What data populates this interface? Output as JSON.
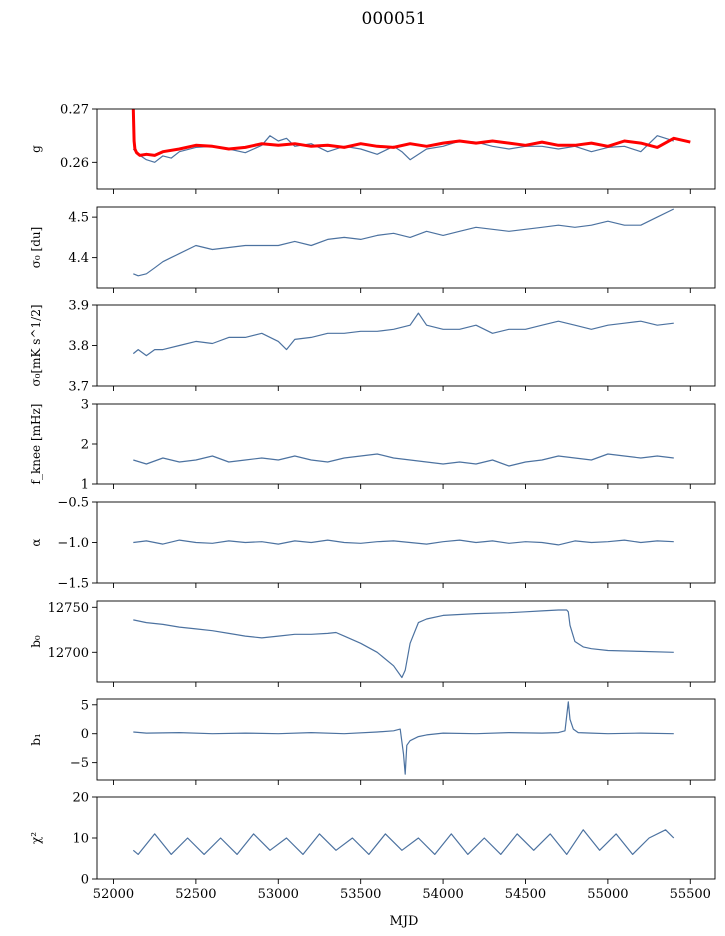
{
  "figure": {
    "title": "000051",
    "xlabel": "MJD"
  },
  "colors": {
    "series": "#4c72a0",
    "fit": "#ff0000",
    "axes": "#000000"
  },
  "chart_data": [
    {
      "type": "line",
      "ylabel": "g",
      "ylim": [
        0.255,
        0.27
      ],
      "yticks": [
        0.26,
        0.27
      ],
      "xlim": [
        51900,
        55650
      ],
      "grid": false,
      "series": [
        {
          "color": "#4c72a0",
          "x": [
            52120,
            52150,
            52200,
            52250,
            52300,
            52350,
            52400,
            52500,
            52600,
            52700,
            52800,
            52900,
            52950,
            53000,
            53050,
            53100,
            53200,
            53300,
            53400,
            53500,
            53600,
            53700,
            53750,
            53800,
            53900,
            54000,
            54100,
            54200,
            54300,
            54400,
            54500,
            54600,
            54700,
            54800,
            54900,
            55000,
            55100,
            55200,
            55300,
            55350,
            55400
          ],
          "y": [
            0.2625,
            0.2615,
            0.2605,
            0.26,
            0.2612,
            0.2608,
            0.262,
            0.2628,
            0.263,
            0.2625,
            0.2618,
            0.2632,
            0.265,
            0.264,
            0.2645,
            0.263,
            0.2635,
            0.262,
            0.263,
            0.2625,
            0.2615,
            0.263,
            0.262,
            0.2605,
            0.2625,
            0.263,
            0.264,
            0.2638,
            0.263,
            0.2625,
            0.263,
            0.263,
            0.2625,
            0.263,
            0.262,
            0.2628,
            0.263,
            0.262,
            0.265,
            0.2645,
            0.264
          ]
        },
        {
          "color": "#ff0000",
          "x": [
            52120,
            52125,
            52130,
            52140,
            52160,
            52200,
            52250,
            52300,
            52400,
            52500,
            52600,
            52700,
            52800,
            52900,
            53000,
            53100,
            53200,
            53300,
            53400,
            53500,
            53600,
            53700,
            53800,
            53900,
            54000,
            54100,
            54200,
            54300,
            54400,
            54500,
            54600,
            54700,
            54800,
            54900,
            55000,
            55100,
            55200,
            55300,
            55400,
            55500
          ],
          "y": [
            0.27,
            0.264,
            0.2625,
            0.2618,
            0.2613,
            0.2615,
            0.2613,
            0.262,
            0.2625,
            0.2632,
            0.263,
            0.2625,
            0.2628,
            0.2635,
            0.2632,
            0.2635,
            0.263,
            0.2632,
            0.2628,
            0.2635,
            0.263,
            0.2628,
            0.2635,
            0.263,
            0.2636,
            0.264,
            0.2636,
            0.264,
            0.2636,
            0.2632,
            0.2638,
            0.2632,
            0.2632,
            0.2636,
            0.263,
            0.264,
            0.2636,
            0.2628,
            0.2645,
            0.2638
          ]
        }
      ]
    },
    {
      "type": "line",
      "ylabel": "σ₀ [du]",
      "ylim": [
        4.325,
        4.525
      ],
      "yticks": [
        4.4,
        4.5
      ],
      "xlim": [
        51900,
        55650
      ],
      "grid": false,
      "series": [
        {
          "color": "#4c72a0",
          "x": [
            52120,
            52150,
            52200,
            52250,
            52300,
            52350,
            52400,
            52500,
            52600,
            52700,
            52800,
            52900,
            53000,
            53100,
            53200,
            53300,
            53400,
            53500,
            53600,
            53700,
            53800,
            53900,
            54000,
            54100,
            54200,
            54300,
            54400,
            54500,
            54600,
            54700,
            54800,
            54900,
            55000,
            55100,
            55200,
            55300,
            55400
          ],
          "y": [
            4.36,
            4.355,
            4.36,
            4.375,
            4.39,
            4.4,
            4.41,
            4.43,
            4.42,
            4.425,
            4.43,
            4.43,
            4.43,
            4.44,
            4.43,
            4.445,
            4.45,
            4.445,
            4.455,
            4.46,
            4.45,
            4.465,
            4.455,
            4.465,
            4.475,
            4.47,
            4.465,
            4.47,
            4.475,
            4.48,
            4.475,
            4.48,
            4.49,
            4.48,
            4.48,
            4.5,
            4.52
          ]
        }
      ]
    },
    {
      "type": "line",
      "ylabel": "σ₀[mK s^1/2]",
      "ylim": [
        3.7,
        3.9
      ],
      "yticks": [
        3.7,
        3.8,
        3.9
      ],
      "xlim": [
        51900,
        55650
      ],
      "grid": false,
      "series": [
        {
          "color": "#4c72a0",
          "x": [
            52120,
            52150,
            52200,
            52250,
            52300,
            52400,
            52500,
            52600,
            52700,
            52800,
            52900,
            53000,
            53050,
            53100,
            53200,
            53300,
            53400,
            53500,
            53600,
            53700,
            53800,
            53850,
            53900,
            54000,
            54100,
            54200,
            54300,
            54400,
            54500,
            54600,
            54700,
            54800,
            54900,
            55000,
            55100,
            55200,
            55300,
            55400
          ],
          "y": [
            3.78,
            3.79,
            3.775,
            3.79,
            3.79,
            3.8,
            3.81,
            3.805,
            3.82,
            3.82,
            3.83,
            3.81,
            3.79,
            3.815,
            3.82,
            3.83,
            3.83,
            3.835,
            3.835,
            3.84,
            3.85,
            3.88,
            3.85,
            3.84,
            3.84,
            3.85,
            3.83,
            3.84,
            3.84,
            3.85,
            3.86,
            3.85,
            3.84,
            3.85,
            3.855,
            3.86,
            3.85,
            3.855
          ]
        }
      ]
    },
    {
      "type": "line",
      "ylabel": "f_knee [mHz]",
      "ylim": [
        1,
        3
      ],
      "yticks": [
        1,
        2,
        3
      ],
      "xlim": [
        51900,
        55650
      ],
      "grid": false,
      "series": [
        {
          "color": "#4c72a0",
          "x": [
            52120,
            52200,
            52300,
            52400,
            52500,
            52600,
            52700,
            52800,
            52900,
            53000,
            53100,
            53200,
            53300,
            53400,
            53500,
            53600,
            53700,
            53800,
            53900,
            54000,
            54100,
            54200,
            54300,
            54400,
            54500,
            54600,
            54700,
            54800,
            54900,
            55000,
            55100,
            55200,
            55300,
            55400
          ],
          "y": [
            1.6,
            1.5,
            1.65,
            1.55,
            1.6,
            1.7,
            1.55,
            1.6,
            1.65,
            1.6,
            1.7,
            1.6,
            1.55,
            1.65,
            1.7,
            1.75,
            1.65,
            1.6,
            1.55,
            1.5,
            1.55,
            1.5,
            1.6,
            1.45,
            1.55,
            1.6,
            1.7,
            1.65,
            1.6,
            1.75,
            1.7,
            1.65,
            1.7,
            1.65
          ]
        }
      ]
    },
    {
      "type": "line",
      "ylabel": "α",
      "ylim": [
        -1.5,
        -0.5
      ],
      "yticks": [
        -1.5,
        -1.0,
        -0.5
      ],
      "xlim": [
        51900,
        55650
      ],
      "grid": false,
      "series": [
        {
          "color": "#4c72a0",
          "x": [
            52120,
            52200,
            52300,
            52400,
            52500,
            52600,
            52700,
            52800,
            52900,
            53000,
            53100,
            53200,
            53300,
            53400,
            53500,
            53600,
            53700,
            53800,
            53900,
            54000,
            54100,
            54200,
            54300,
            54400,
            54500,
            54600,
            54700,
            54800,
            54900,
            55000,
            55100,
            55200,
            55300,
            55400
          ],
          "y": [
            -1.0,
            -0.98,
            -1.02,
            -0.97,
            -1.0,
            -1.01,
            -0.98,
            -1.0,
            -0.99,
            -1.02,
            -0.98,
            -1.0,
            -0.97,
            -1.0,
            -1.01,
            -0.99,
            -0.98,
            -1.0,
            -1.02,
            -0.99,
            -0.97,
            -1.0,
            -0.98,
            -1.01,
            -0.99,
            -1.0,
            -1.03,
            -0.98,
            -1.0,
            -0.99,
            -0.97,
            -1.0,
            -0.98,
            -0.99
          ]
        }
      ]
    },
    {
      "type": "line",
      "ylabel": "b₀",
      "ylim": [
        12667,
        12757
      ],
      "yticks": [
        12700,
        12750
      ],
      "xlim": [
        51900,
        55650
      ],
      "grid": false,
      "series": [
        {
          "color": "#4c72a0",
          "x": [
            52120,
            52200,
            52300,
            52400,
            52500,
            52600,
            52700,
            52800,
            52900,
            53000,
            53100,
            53200,
            53300,
            53350,
            53400,
            53500,
            53600,
            53700,
            53750,
            53770,
            53800,
            53850,
            53900,
            54000,
            54200,
            54400,
            54500,
            54600,
            54700,
            54750,
            54760,
            54770,
            54800,
            54850,
            54900,
            55000,
            55200,
            55400
          ],
          "y": [
            12736,
            12733,
            12731,
            12728,
            12726,
            12724,
            12721,
            12718,
            12716,
            12718,
            12720,
            12720,
            12721,
            12722,
            12718,
            12710,
            12700,
            12685,
            12672,
            12680,
            12710,
            12733,
            12737,
            12741,
            12743,
            12744,
            12745,
            12746,
            12747,
            12747,
            12745,
            12730,
            12712,
            12706,
            12704,
            12702,
            12701,
            12700
          ]
        }
      ]
    },
    {
      "type": "line",
      "ylabel": "b₁",
      "ylim": [
        -8,
        6
      ],
      "yticks": [
        -5,
        0,
        5
      ],
      "xlim": [
        51900,
        55650
      ],
      "grid": false,
      "series": [
        {
          "color": "#4c72a0",
          "x": [
            52120,
            52200,
            52400,
            52600,
            52800,
            53000,
            53200,
            53400,
            53600,
            53700,
            53740,
            53760,
            53770,
            53780,
            53800,
            53850,
            53900,
            54000,
            54200,
            54400,
            54600,
            54700,
            54740,
            54760,
            54770,
            54790,
            54820,
            54900,
            55000,
            55200,
            55400
          ],
          "y": [
            0.3,
            0.1,
            0.2,
            0.0,
            0.1,
            0.0,
            0.2,
            0.0,
            0.3,
            0.5,
            0.8,
            -3.5,
            -7.0,
            -2.0,
            -1.2,
            -0.5,
            -0.2,
            0.1,
            0.0,
            0.2,
            0.1,
            0.2,
            0.5,
            5.5,
            2.5,
            0.8,
            0.2,
            0.1,
            0.0,
            0.1,
            0.0
          ]
        }
      ]
    },
    {
      "type": "line",
      "ylabel": "χ²",
      "ylim": [
        0,
        20
      ],
      "yticks": [
        0,
        10,
        20
      ],
      "xlim": [
        51900,
        55650
      ],
      "grid": false,
      "xticks": [
        52000,
        52500,
        53000,
        53500,
        54000,
        54500,
        55000,
        55500
      ],
      "series": [
        {
          "color": "#4c72a0",
          "x": [
            52120,
            52150,
            52250,
            52350,
            52450,
            52550,
            52650,
            52750,
            52850,
            52950,
            53050,
            53150,
            53250,
            53350,
            53450,
            53550,
            53650,
            53750,
            53850,
            53950,
            54050,
            54150,
            54250,
            54350,
            54450,
            54550,
            54650,
            54750,
            54850,
            54950,
            55050,
            55150,
            55250,
            55350,
            55400
          ],
          "y": [
            7,
            6,
            11,
            6,
            10,
            6,
            10,
            6,
            11,
            7,
            10,
            6,
            11,
            7,
            10,
            6,
            11,
            7,
            10,
            6,
            11,
            6,
            10,
            6,
            11,
            7,
            11,
            6,
            12,
            7,
            11,
            6,
            10,
            12,
            10
          ]
        }
      ]
    }
  ]
}
